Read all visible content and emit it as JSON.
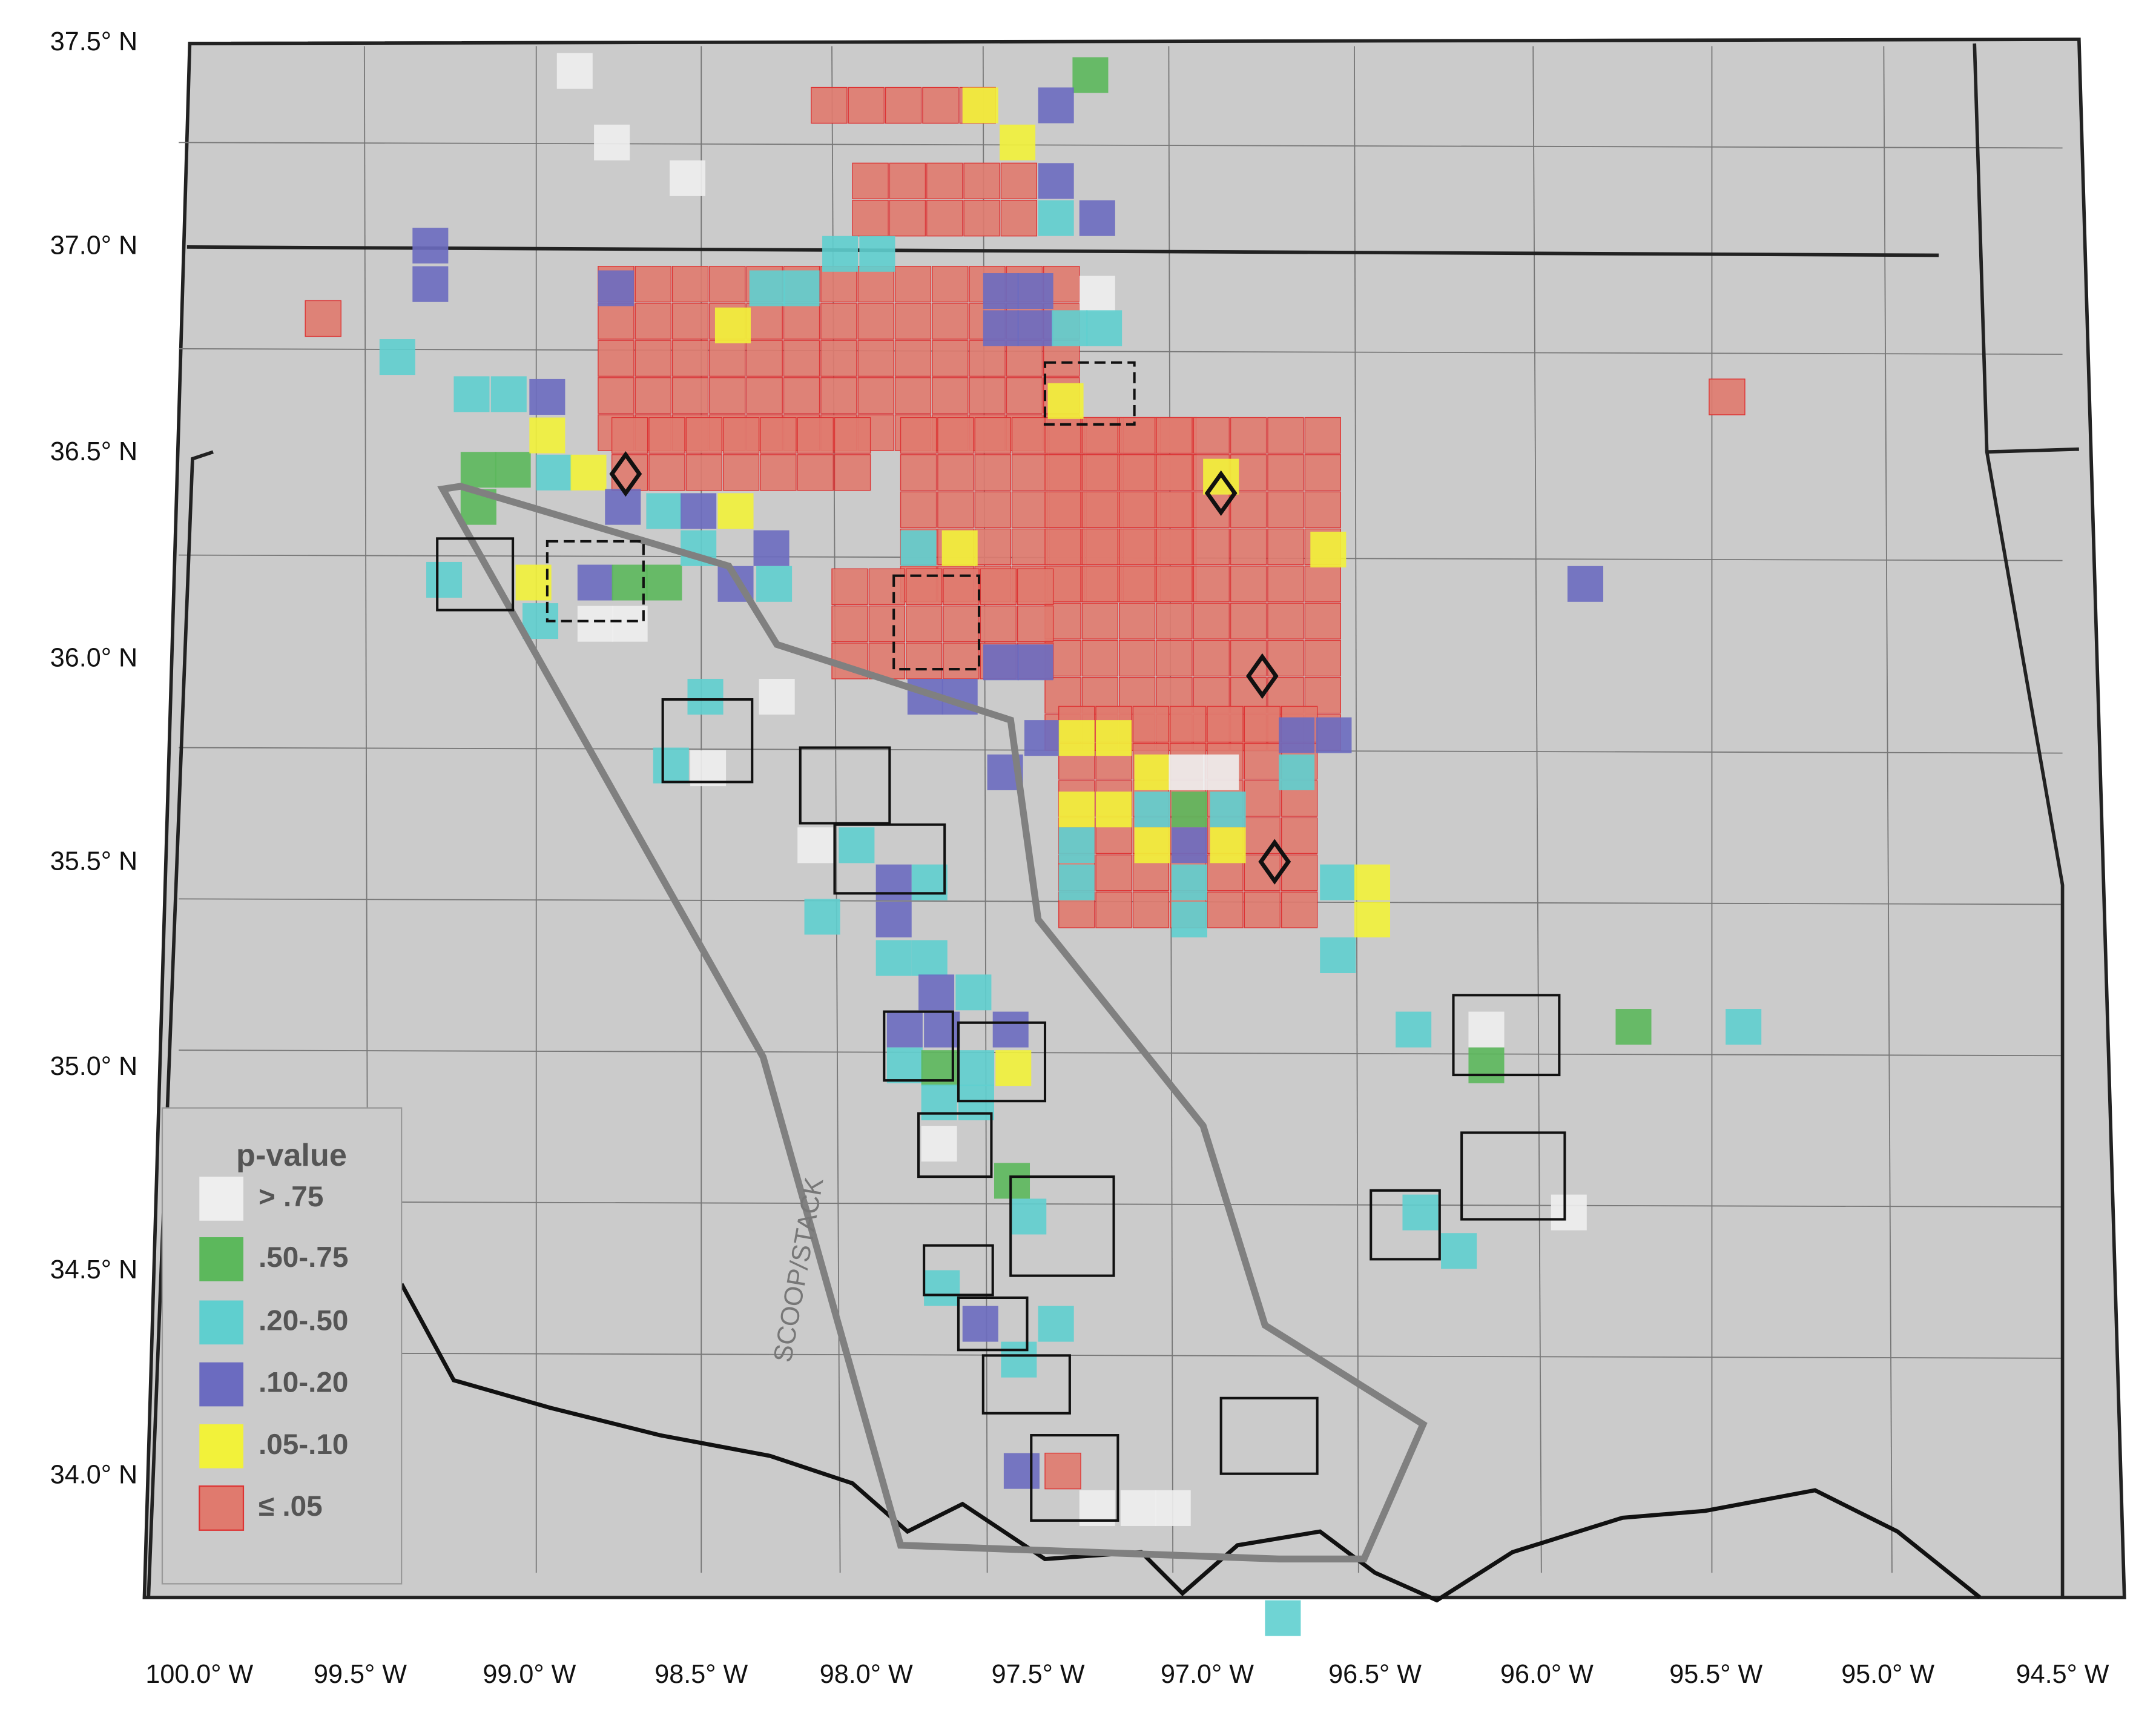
{
  "map": {
    "lat_labels": [
      "37.5° N",
      "37.0° N",
      "36.5° N",
      "36.0° N",
      "35.5° N",
      "35.0° N",
      "34.5° N",
      "34.0° N"
    ],
    "lon_labels": [
      "100.0° W",
      "99.5° W",
      "99.0° W",
      "98.5° W",
      "98.0° W",
      "97.5° W",
      "97.0° W",
      "96.5° W",
      "96.0° W",
      "95.5° W",
      "95.0° W",
      "94.5° W"
    ],
    "region_label": "SCOOP/STACK",
    "legend": {
      "title": "p-value",
      "items": [
        {
          "label": "> .75",
          "color": "#eeeeee"
        },
        {
          "label": ".50-.75",
          "color": "#5cb85c"
        },
        {
          "label": ".20-.50",
          "color": "#5fcfcf"
        },
        {
          "label": ".10-.20",
          "color": "#6b6bc0"
        },
        {
          "label": ".05-.10",
          "color": "#f2f23a"
        },
        {
          "label": "≤ .05",
          "color": "#e07a6e"
        }
      ]
    }
  }
}
